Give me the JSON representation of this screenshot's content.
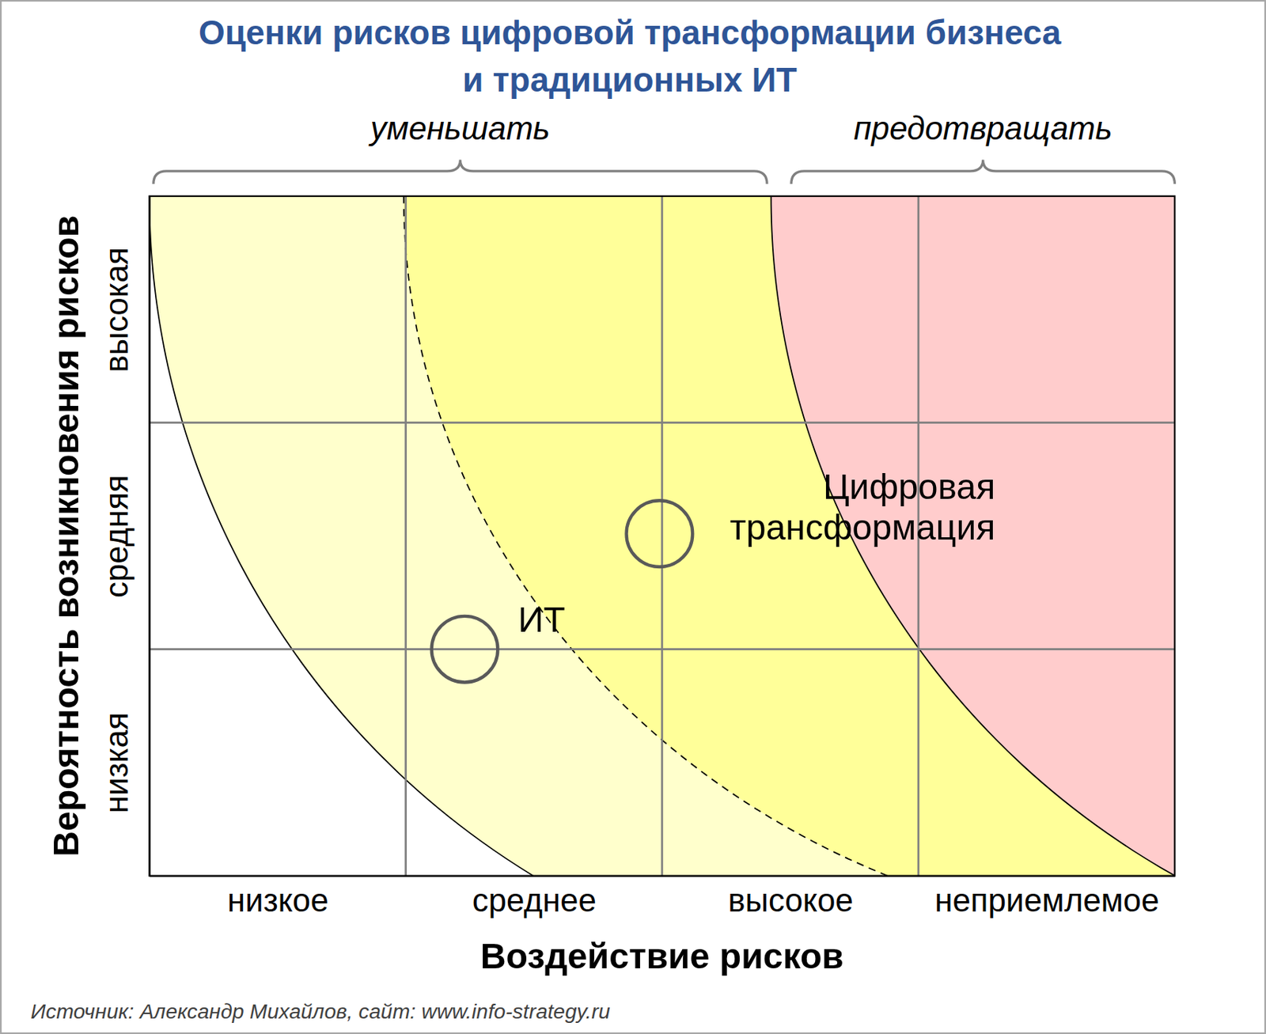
{
  "chart_data": {
    "type": "scatter",
    "title": "Оценки рисков цифровой трансформации бизнеса\nи традиционных ИТ",
    "x_label": "Воздействие рисков",
    "y_label": "Вероятность возникновения рисков",
    "xlim": [
      0,
      4
    ],
    "ylim": [
      0,
      3
    ],
    "xticks": [
      {
        "value": 0.5,
        "label": "низкое"
      },
      {
        "value": 1.5,
        "label": "среднее"
      },
      {
        "value": 2.5,
        "label": "высокое"
      },
      {
        "value": 3.5,
        "label": "неприемлемое"
      }
    ],
    "yticks": [
      {
        "value": 0.5,
        "label": "низкая"
      },
      {
        "value": 1.5,
        "label": "средняя"
      },
      {
        "value": 2.5,
        "label": "высокая"
      }
    ],
    "grid": true,
    "marker": "circle",
    "series": [
      {
        "name": "ИТ",
        "x": [
          1.23
        ],
        "values": [
          1.0
        ]
      },
      {
        "name": "Цифровая трансформация",
        "x": [
          1.99
        ],
        "values": [
          1.51
        ]
      }
    ],
    "annotations": [
      "уменьшать",
      "предотвращать"
    ],
    "source": "Источник: Александр Михайлов, сайт: www.info-strategy.ru"
  }
}
